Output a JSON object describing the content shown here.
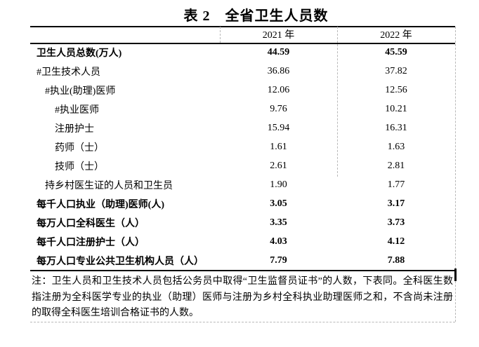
{
  "title": "表 2　全省卫生人员数",
  "colors": {
    "text": "#000000",
    "gridline": "#b9b9b9",
    "border": "#000000"
  },
  "table": {
    "columns": [
      "",
      "2021 年",
      "2022 年"
    ],
    "rows": [
      {
        "label": "卫生人员总数(万人)",
        "v2021": "44.59",
        "v2022": "45.59",
        "bold": true,
        "indent": 0
      },
      {
        "label": "#卫生技术人员",
        "v2021": "36.86",
        "v2022": "37.82",
        "bold": false,
        "indent": 0
      },
      {
        "label": "#执业(助理)医师",
        "v2021": "12.06",
        "v2022": "12.56",
        "bold": false,
        "indent": 1
      },
      {
        "label": "#执业医师",
        "v2021": "9.76",
        "v2022": "10.21",
        "bold": false,
        "indent": 2
      },
      {
        "label": "注册护士",
        "v2021": "15.94",
        "v2022": "16.31",
        "bold": false,
        "indent": 2
      },
      {
        "label": "药师（士）",
        "v2021": "1.61",
        "v2022": "1.63",
        "bold": false,
        "indent": 2
      },
      {
        "label": "技师（士）",
        "v2021": "2.61",
        "v2022": "2.81",
        "bold": false,
        "indent": 2
      },
      {
        "label": "持乡村医生证的人员和卫生员",
        "v2021": "1.90",
        "v2022": "1.77",
        "bold": false,
        "indent": 1
      },
      {
        "label": "每千人口执业（助理)医师(人)",
        "v2021": "3.05",
        "v2022": "3.17",
        "bold": true,
        "indent": 0
      },
      {
        "label": "每万人口全科医生（人）",
        "v2021": "3.35",
        "v2022": "3.73",
        "bold": true,
        "indent": 0
      },
      {
        "label": "每千人口注册护士（人）",
        "v2021": "4.03",
        "v2022": "4.12",
        "bold": true,
        "indent": 0
      },
      {
        "label": "每万人口专业公共卫生机构人员（人）",
        "v2021": "7.79",
        "v2022": "7.88",
        "bold": true,
        "indent": 0
      }
    ],
    "note": "注：卫生人员和卫生技术人员包括公务员中取得“卫生监督员证书”的人数，下表同。全科医生数指注册为全科医学专业的执业（助理）医师与注册为乡村全科执业助理医师之和，不含尚未注册的取得全科医生培训合格证书的人数。"
  }
}
